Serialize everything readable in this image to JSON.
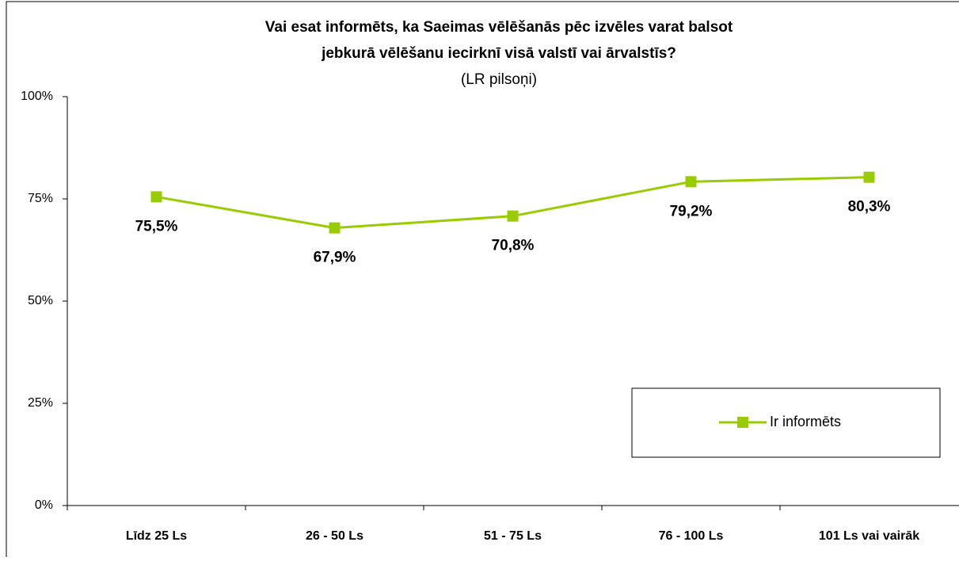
{
  "chart_data": {
    "type": "line",
    "title": "Vai esat informēts, ka Saeimas vēlēšanās pēc izvēles varat balsot",
    "title_line2": "jebkurā vēlēšanu iecirknī visā valstī vai ārvalstīs?",
    "subtitle": "(LR pilsoņi)",
    "categories": [
      "Līdz 25 Ls",
      "26 - 50 Ls",
      "51 - 75 Ls",
      "76 - 100 Ls",
      "101 Ls vai vairāk"
    ],
    "series": [
      {
        "name": "Ir informēts",
        "color": "#99cc00",
        "values": [
          75.5,
          67.9,
          70.8,
          79.2,
          80.3
        ],
        "value_labels": [
          "75,5%",
          "67,9%",
          "70,8%",
          "79,2%",
          "80,3%"
        ]
      }
    ],
    "ylim": [
      0,
      100
    ],
    "yticks": [
      {
        "value": 0,
        "label": "0%"
      },
      {
        "value": 25,
        "label": "25%"
      },
      {
        "value": 50,
        "label": "50%"
      },
      {
        "value": 75,
        "label": "75%"
      },
      {
        "value": 100,
        "label": "100%"
      }
    ],
    "grid": false,
    "legend": "lower right"
  }
}
